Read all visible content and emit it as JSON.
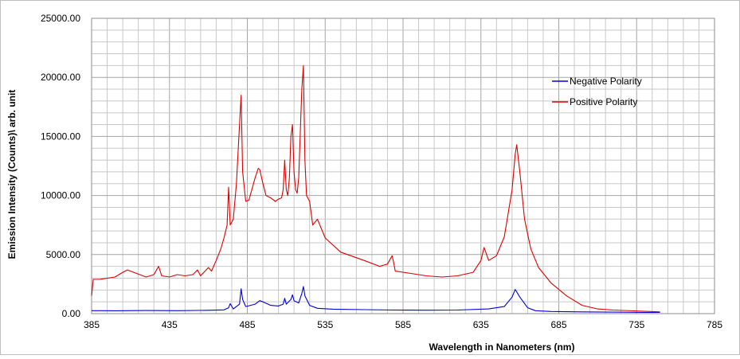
{
  "chart_data": {
    "type": "line",
    "title": "",
    "xlabel": "Wavelength in Nanometers (nm)",
    "ylabel": "Emission Intensity (Counts)\\ arb. unit",
    "xlim": [
      385,
      785
    ],
    "ylim": [
      0,
      25000
    ],
    "x_ticks": [
      "385",
      "435",
      "485",
      "535",
      "585",
      "635",
      "685",
      "735",
      "785"
    ],
    "y_ticks": [
      "0.00",
      "5000.00",
      "10000.00",
      "15000.00",
      "20000.00",
      "25000.00"
    ],
    "grid": true,
    "legend_position": "top-right",
    "series": [
      {
        "name": "Negative Polarity",
        "color": "#0000dd",
        "x": [
          385,
          400,
          420,
          440,
          460,
          470,
          473,
          474,
          476,
          480,
          481,
          482,
          484,
          490,
          493,
          495,
          500,
          505,
          508,
          509,
          510,
          513,
          514,
          515,
          518,
          520,
          521,
          522,
          525,
          530,
          540,
          560,
          580,
          600,
          620,
          640,
          650,
          655,
          657,
          660,
          665,
          670,
          680,
          700,
          720,
          740,
          750
        ],
        "y": [
          250,
          240,
          260,
          250,
          280,
          320,
          500,
          850,
          400,
          800,
          2100,
          1200,
          600,
          800,
          1100,
          1000,
          700,
          650,
          800,
          1300,
          800,
          1200,
          1600,
          1100,
          900,
          1700,
          2300,
          1500,
          700,
          450,
          380,
          340,
          300,
          290,
          300,
          400,
          600,
          1400,
          2050,
          1400,
          500,
          250,
          180,
          150,
          130,
          110,
          100
        ]
      },
      {
        "name": "Positive Polarity",
        "color": "#dd0000",
        "x": [
          385,
          386,
          390,
          400,
          405,
          408,
          412,
          420,
          425,
          428,
          430,
          435,
          440,
          445,
          450,
          453,
          455,
          460,
          462,
          465,
          468,
          470,
          472,
          473,
          474,
          476,
          478,
          480,
          481,
          482,
          484,
          486,
          490,
          492,
          493,
          495,
          497,
          500,
          503,
          505,
          507,
          508,
          509,
          510,
          511,
          512,
          513,
          514,
          515,
          516,
          517,
          518,
          520,
          521,
          522,
          523,
          525,
          527,
          530,
          535,
          545,
          560,
          570,
          575,
          578,
          579,
          580,
          590,
          600,
          610,
          620,
          630,
          635,
          637,
          640,
          645,
          650,
          655,
          657,
          658,
          660,
          663,
          667,
          672,
          680,
          690,
          700,
          710,
          720,
          740,
          750
        ],
        "y": [
          1500,
          2900,
          2900,
          3100,
          3500,
          3700,
          3500,
          3100,
          3300,
          4000,
          3200,
          3100,
          3300,
          3200,
          3300,
          3700,
          3200,
          3900,
          3600,
          4500,
          5500,
          6400,
          7500,
          10700,
          7500,
          8000,
          11000,
          16000,
          18500,
          12000,
          9500,
          9600,
          11500,
          12300,
          12200,
          11000,
          10000,
          9800,
          9500,
          9700,
          9800,
          10500,
          13000,
          10500,
          10000,
          11500,
          15000,
          16000,
          12000,
          10500,
          10200,
          11500,
          19000,
          21000,
          13000,
          10000,
          9500,
          7500,
          8000,
          6400,
          5200,
          4500,
          4000,
          4200,
          4900,
          4300,
          3600,
          3400,
          3200,
          3100,
          3200,
          3500,
          4500,
          5600,
          4500,
          4900,
          6500,
          10500,
          13500,
          14300,
          12000,
          8000,
          5500,
          3900,
          2600,
          1500,
          700,
          400,
          300,
          200,
          150
        ]
      }
    ]
  }
}
